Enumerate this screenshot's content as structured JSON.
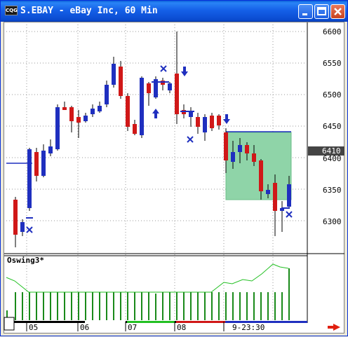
{
  "window": {
    "title": "S.EBAY - eBay Inc, 60 Min",
    "icon_text": "CQG",
    "icons": {
      "minimize": "minimize-icon",
      "maximize": "maximize-icon",
      "close": "close-icon"
    }
  },
  "price_axis": {
    "ticks": [
      "6600",
      "6550",
      "6500",
      "6450",
      "6400",
      "6350",
      "6300"
    ],
    "last_price": "6410"
  },
  "oscillator": {
    "label": "Oswing3*"
  },
  "time_axis": {
    "labels": [
      "05",
      "06",
      "07",
      "08",
      "9-23:30"
    ]
  },
  "colors": {
    "up": "#1f2fbf",
    "down": "#d01818",
    "signal": "#1f2fbf",
    "box_fill": "#8fd4a8",
    "osc_line": "#22c022",
    "osc_bar": "#1a8a1a"
  },
  "nav": {
    "scroll_right_icon": "arrow-right-icon"
  }
}
